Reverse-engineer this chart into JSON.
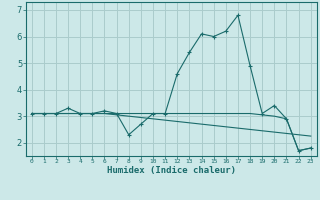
{
  "title": "",
  "xlabel": "Humidex (Indice chaleur)",
  "ylabel": "",
  "background_color": "#cce8e8",
  "grid_color": "#aacccc",
  "line_color": "#1a6b6b",
  "x_values": [
    0,
    1,
    2,
    3,
    4,
    5,
    6,
    7,
    8,
    9,
    10,
    11,
    12,
    13,
    14,
    15,
    16,
    17,
    18,
    19,
    20,
    21,
    22,
    23
  ],
  "line1": [
    3.1,
    3.1,
    3.1,
    3.3,
    3.1,
    3.1,
    3.2,
    3.1,
    2.3,
    2.7,
    3.1,
    3.1,
    4.6,
    5.4,
    6.1,
    6.0,
    6.2,
    6.8,
    4.9,
    3.1,
    3.4,
    2.9,
    1.7,
    1.8
  ],
  "line2": [
    3.1,
    3.1,
    3.1,
    3.1,
    3.1,
    3.1,
    3.1,
    3.05,
    3.0,
    2.95,
    2.9,
    2.85,
    2.8,
    2.75,
    2.7,
    2.65,
    2.6,
    2.55,
    2.5,
    2.45,
    2.4,
    2.35,
    2.3,
    2.25
  ],
  "line3": [
    3.1,
    3.1,
    3.1,
    3.1,
    3.1,
    3.1,
    3.1,
    3.1,
    3.1,
    3.1,
    3.1,
    3.1,
    3.1,
    3.1,
    3.1,
    3.1,
    3.1,
    3.1,
    3.1,
    3.05,
    3.0,
    2.9,
    1.7,
    1.8
  ],
  "ylim": [
    1.5,
    7.3
  ],
  "yticks": [
    2,
    3,
    4,
    5,
    6,
    7
  ],
  "xlim": [
    -0.5,
    23.5
  ]
}
